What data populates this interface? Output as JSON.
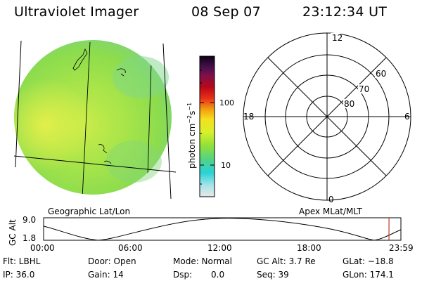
{
  "header": {
    "instrument": "Ultraviolet Imager",
    "date": "08 Sep 07",
    "time": "23:12:34 UT"
  },
  "colorbar": {
    "label": "photon cm",
    "label_sup1": "−2",
    "label_mid": "s",
    "label_sup2": "−1",
    "ticks": [
      {
        "value": 100,
        "label": "100"
      },
      {
        "value": 10,
        "label": "10"
      }
    ]
  },
  "left_panel": {
    "label": "Geographic Lat/Lon"
  },
  "right_panel": {
    "label": "Apex MLat/MLT",
    "mlt_labels": {
      "top": "12",
      "left": "18",
      "right": "6",
      "bottom": "0"
    },
    "lat_labels": [
      "60",
      "70",
      "80"
    ]
  },
  "orbit_plot": {
    "ylabel": "GC Alt",
    "yticks": [
      "9.0",
      "1.8"
    ],
    "xticks": [
      "00:00",
      "06:00",
      "12:00",
      "18:00",
      "23:59"
    ],
    "current_marker_hour": 23.2,
    "marker_color": "#c0392b"
  },
  "status": {
    "filter": "Flt: LBHL",
    "ip": "IP: 36.0",
    "door": "Door: Open",
    "gain": "Gain: 14",
    "mode": "Mode: Normal",
    "dsp": "Dsp:",
    "dsp_value": "0.0",
    "gc_alt": "GC Alt: 3.7 Re",
    "seq": "Seq: 39",
    "glat": "GLat: −18.8",
    "glon": "GLon: 174.1"
  }
}
